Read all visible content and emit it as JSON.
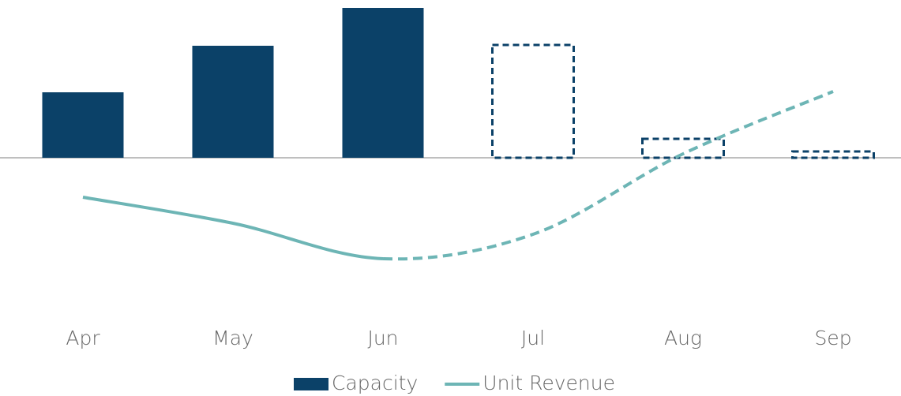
{
  "chart_data": {
    "type": "bar_line",
    "categories": [
      "Apr",
      "May",
      "Jun",
      "Jul",
      "Aug",
      "Sep"
    ],
    "ylim": [
      -200,
      200
    ],
    "series": [
      {
        "name": "Capacity",
        "type": "bar",
        "color": "#0b4168",
        "values": [
          83,
          142,
          190,
          143,
          24,
          8
        ],
        "dashed_from": 3
      },
      {
        "name": "Unit Revenue",
        "type": "line",
        "color": "#6db5b5",
        "values": [
          -50,
          -83,
          -128,
          -97,
          5,
          84
        ],
        "dashed_from": 2
      }
    ]
  }
}
